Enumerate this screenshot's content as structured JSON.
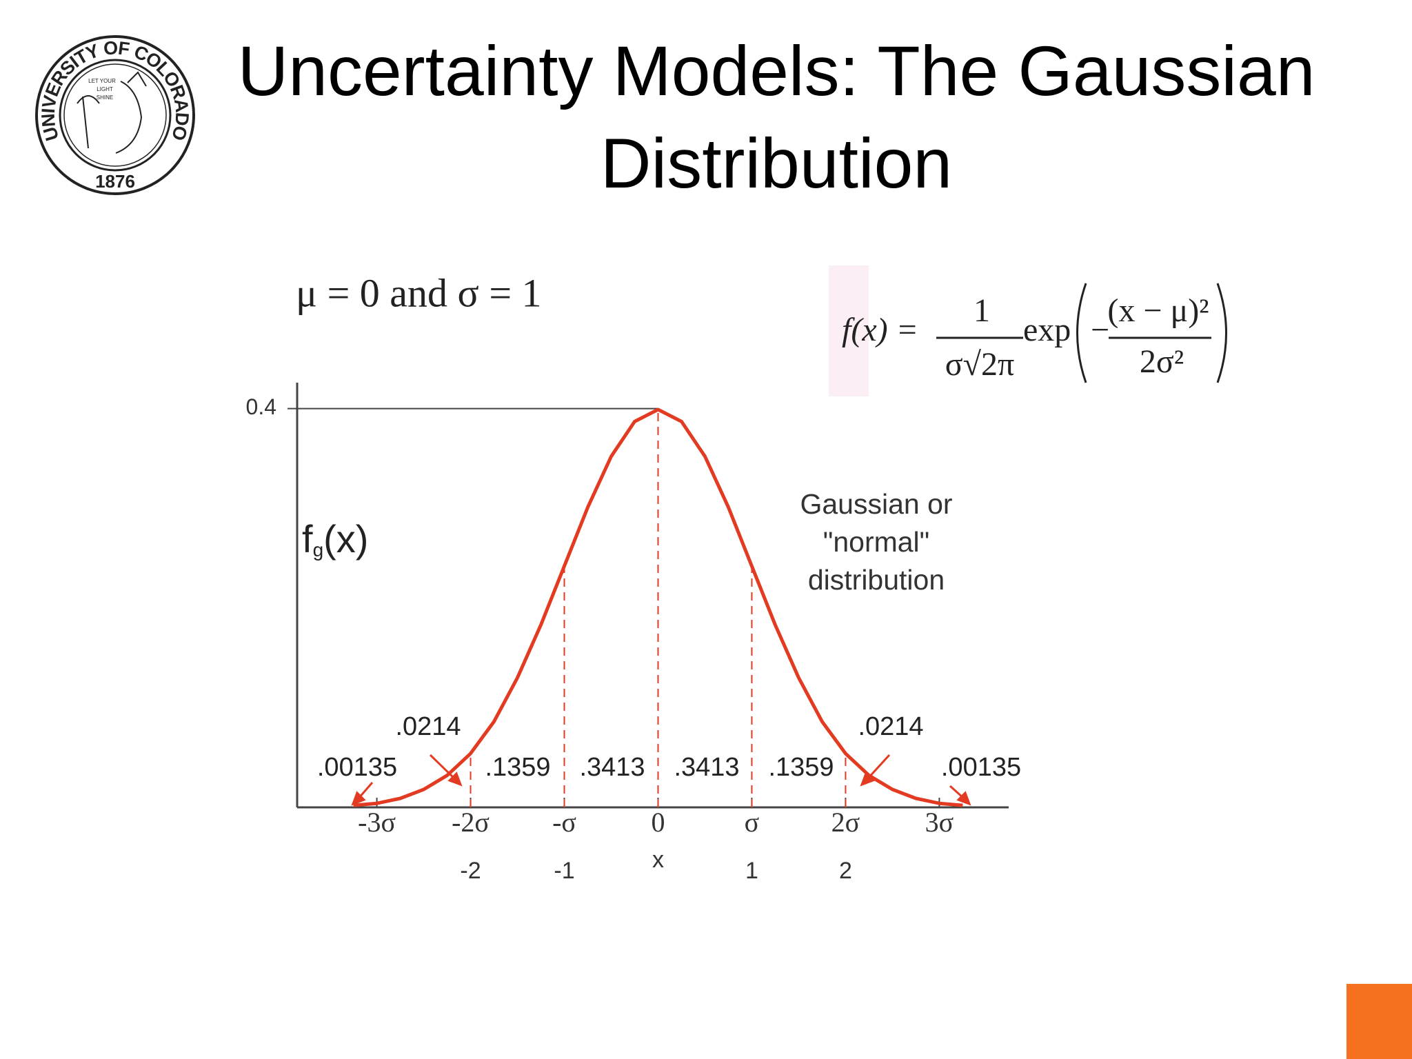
{
  "slide": {
    "title_lines": [
      "Uncertainty Models: The Gaussian",
      "Distribution"
    ],
    "logo": {
      "ring_text": "UNIVERSITY OF COLORADO",
      "motto": [
        "LET YOUR",
        "LIGHT",
        "SHINE"
      ],
      "year": "1876"
    },
    "params": "μ = 0 and σ = 1",
    "formula": {
      "lhs": "f(x) =",
      "num": "1",
      "den": "σ√2π",
      "func": "exp",
      "minus": "−",
      "inner_num": "(x − μ)²",
      "inner_den": "2σ²"
    }
  },
  "chart_data": {
    "type": "line",
    "ylabel": [
      "f",
      "g",
      "(x)"
    ],
    "xlabel": "x",
    "annotation": [
      "Gaussian or",
      "\"normal\"",
      "distribution"
    ],
    "x": [
      -3.25,
      -3,
      -2.75,
      -2.5,
      -2.25,
      -2,
      -1.75,
      -1.5,
      -1.25,
      -1,
      -0.75,
      -0.5,
      -0.25,
      0,
      0.25,
      0.5,
      0.75,
      1,
      1.25,
      1.5,
      1.75,
      2,
      2.25,
      2.5,
      2.75,
      3,
      3.25
    ],
    "values": [
      0.002,
      0.004,
      0.009,
      0.018,
      0.032,
      0.054,
      0.086,
      0.13,
      0.183,
      0.242,
      0.301,
      0.352,
      0.387,
      0.399,
      0.387,
      0.352,
      0.301,
      0.242,
      0.183,
      0.13,
      0.086,
      0.054,
      0.032,
      0.018,
      0.009,
      0.004,
      0.002
    ],
    "color": "#e33b22",
    "xlim": [
      -3.85,
      3.74
    ],
    "ylim": [
      0,
      0.426
    ],
    "yticks": [
      0.4
    ],
    "xticks": [
      {
        "value": -3,
        "label": "-3σ"
      },
      {
        "value": -2,
        "label": "-2σ"
      },
      {
        "value": -1,
        "label": "-σ"
      },
      0,
      {
        "value": 1,
        "label": "σ"
      },
      {
        "value": 2,
        "label": "2σ"
      },
      {
        "value": 3,
        "label": "3σ"
      }
    ],
    "x_unit_ticks": [
      -2,
      -1,
      1,
      2
    ],
    "dividers": [
      -2,
      -1,
      0,
      1,
      2
    ],
    "areas": {
      "values": [
        0.00135,
        0.0214,
        0.1359,
        0.3413,
        0.3413,
        0.1359,
        0.0214,
        0.00135
      ],
      "value_labels": [
        ".00135",
        ".0214",
        ".1359",
        ".3413",
        ".3413",
        ".1359",
        ".0214",
        ".00135"
      ]
    }
  }
}
